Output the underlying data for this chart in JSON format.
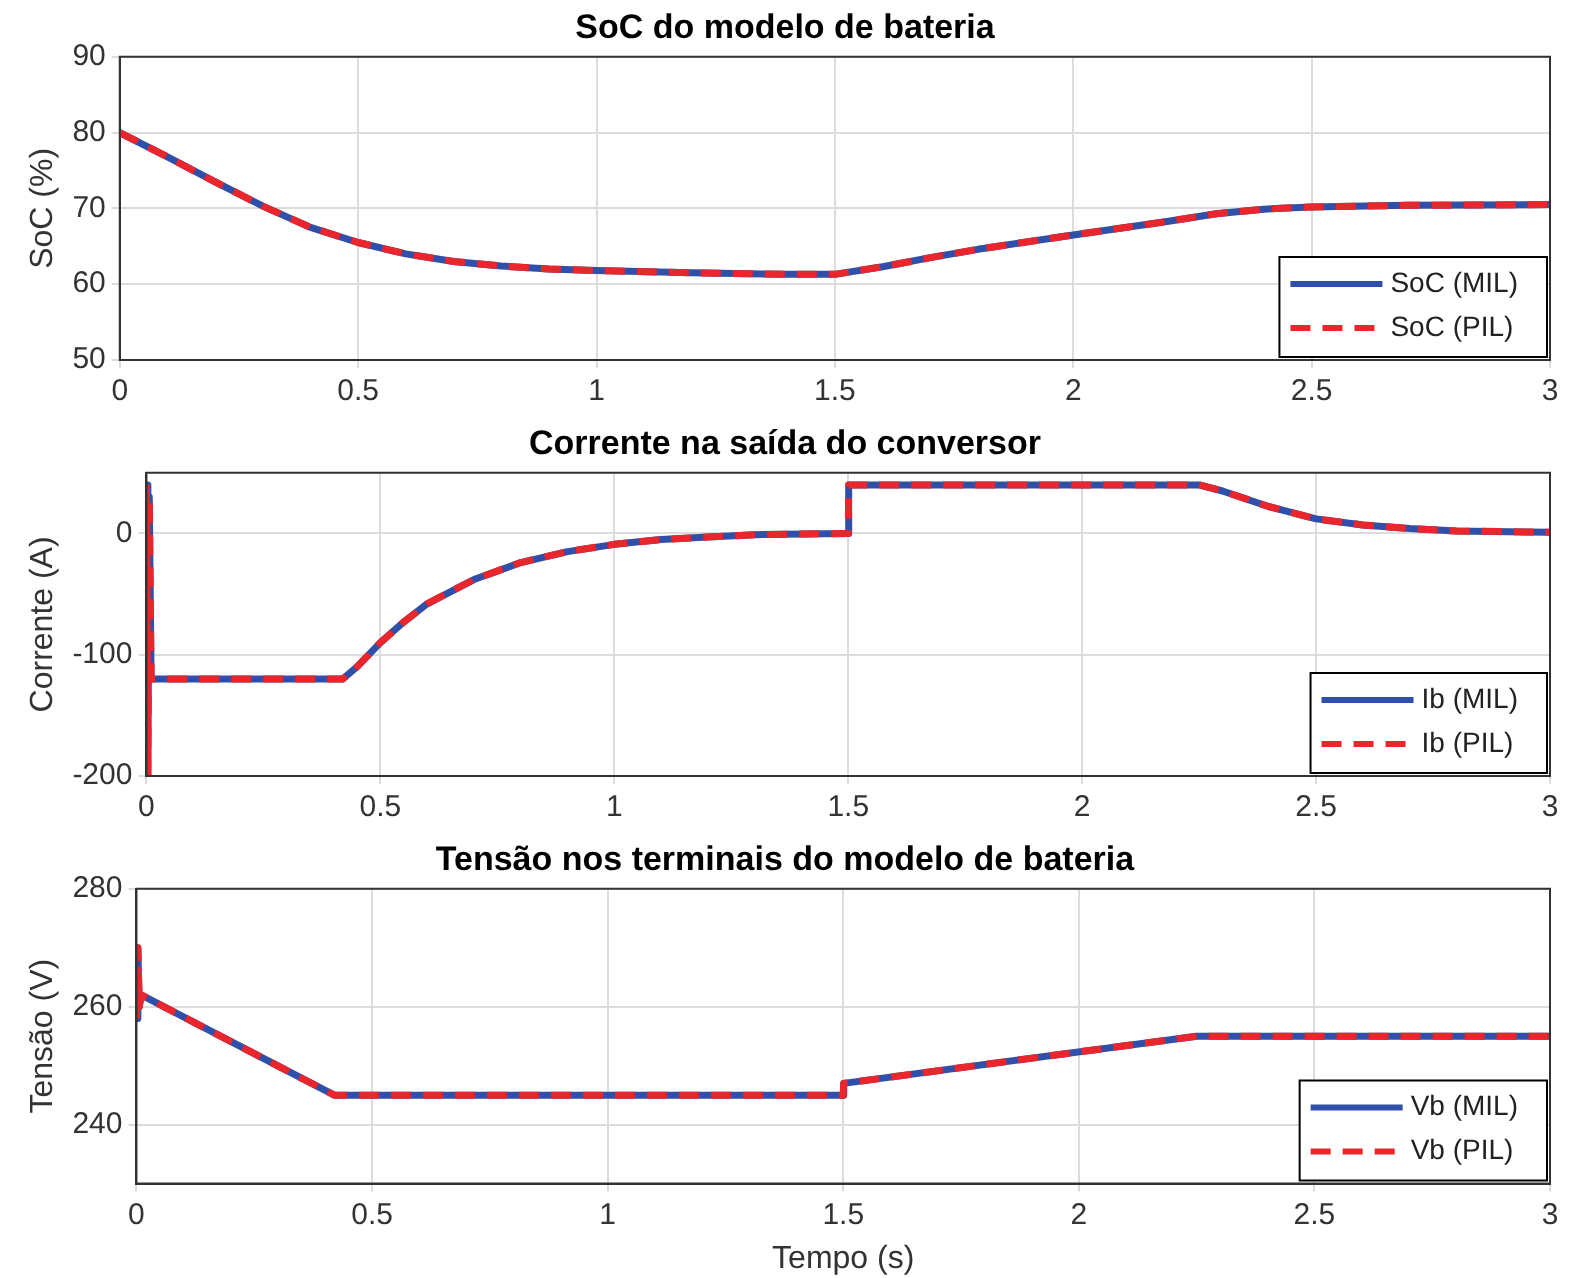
{
  "chart_data": [
    {
      "type": "line",
      "title": "SoC do modelo de bateria",
      "ylabel": "SoC (%)",
      "x": [
        0,
        0.1,
        0.2,
        0.3,
        0.4,
        0.5,
        0.6,
        0.7,
        0.8,
        0.9,
        1.0,
        1.2,
        1.4,
        1.5,
        1.6,
        1.7,
        1.8,
        2.0,
        2.2,
        2.3,
        2.4,
        2.5,
        2.7,
        3
      ],
      "series": [
        {
          "name": "SoC (MIL)",
          "color": "#2f4fa8",
          "line_style": "solid",
          "values": [
            80,
            76.8,
            73.5,
            70.3,
            67.5,
            65.5,
            64,
            63,
            62.4,
            62,
            61.8,
            61.5,
            61.3,
            61.3,
            62.3,
            63.5,
            64.6,
            66.5,
            68.3,
            69.3,
            69.9,
            70.2,
            70.4,
            70.5
          ]
        },
        {
          "name": "SoC (PIL)",
          "color": "#e8262c",
          "line_style": "dashed",
          "values": [
            80,
            76.8,
            73.5,
            70.3,
            67.5,
            65.5,
            64,
            63,
            62.4,
            62,
            61.8,
            61.5,
            61.3,
            61.3,
            62.3,
            63.5,
            64.6,
            66.5,
            68.3,
            69.3,
            69.9,
            70.2,
            70.4,
            70.5
          ]
        }
      ],
      "xlim": [
        0,
        3
      ],
      "xticks": [
        0,
        0.5,
        1,
        1.5,
        2,
        2.5,
        3
      ],
      "ylim": [
        50,
        90
      ],
      "yticks": [
        50,
        60,
        70,
        80,
        90
      ],
      "grid": true,
      "legend": "bottom right"
    },
    {
      "type": "line",
      "title": "Corrente na saída do conversor",
      "ylabel": "Corrente (A)",
      "x": [
        0,
        0.003,
        0.006,
        0.01,
        0.42,
        0.45,
        0.5,
        0.55,
        0.6,
        0.7,
        0.8,
        0.9,
        1.0,
        1.1,
        1.2,
        1.3,
        1.5,
        1.501,
        2.25,
        2.3,
        2.4,
        2.5,
        2.6,
        2.7,
        2.8,
        3
      ],
      "series": [
        {
          "name": "Ib (MIL)",
          "color": "#2f4fa8",
          "line_style": "solid",
          "values": [
            40,
            -200,
            30,
            -120,
            -120,
            -110,
            -90,
            -73,
            -58,
            -38,
            -24,
            -15,
            -9,
            -5,
            -3,
            -1,
            0,
            40,
            40,
            35,
            22,
            12,
            7,
            4,
            2,
            1
          ]
        },
        {
          "name": "Ib (PIL)",
          "color": "#e8262c",
          "line_style": "dashed",
          "values": [
            40,
            -200,
            30,
            -120,
            -120,
            -110,
            -90,
            -73,
            -58,
            -38,
            -24,
            -15,
            -9,
            -5,
            -3,
            -1,
            0,
            40,
            40,
            35,
            22,
            12,
            7,
            4,
            2,
            1
          ]
        }
      ],
      "xlim": [
        0,
        3
      ],
      "xticks": [
        0,
        0.5,
        1,
        1.5,
        2,
        2.5,
        3
      ],
      "ylim": [
        -200,
        50
      ],
      "yticks": [
        -200,
        -100,
        0
      ],
      "grid": true,
      "legend": "bottom right"
    },
    {
      "type": "line",
      "title": "Tensão nos terminais do modelo de bateria",
      "xlabel": "Tempo (s)",
      "ylabel": "Tensão (V)",
      "x": [
        0,
        0.003,
        0.006,
        0.01,
        0.42,
        1.5,
        1.501,
        2.25,
        3
      ],
      "series": [
        {
          "name": "Vb (MIL)",
          "color": "#2f4fa8",
          "line_style": "solid",
          "values": [
            258,
            270,
            260,
            262,
            245,
            245,
            247,
            255,
            255
          ]
        },
        {
          "name": "Vb (PIL)",
          "color": "#e8262c",
          "line_style": "dashed",
          "values": [
            258,
            270,
            260,
            262,
            245,
            245,
            247,
            255,
            255
          ]
        }
      ],
      "xlim": [
        0,
        3
      ],
      "xticks": [
        0,
        0.5,
        1,
        1.5,
        2,
        2.5,
        3
      ],
      "ylim": [
        230,
        280
      ],
      "yticks": [
        240,
        260,
        280
      ],
      "grid": true,
      "legend": "bottom right"
    }
  ]
}
